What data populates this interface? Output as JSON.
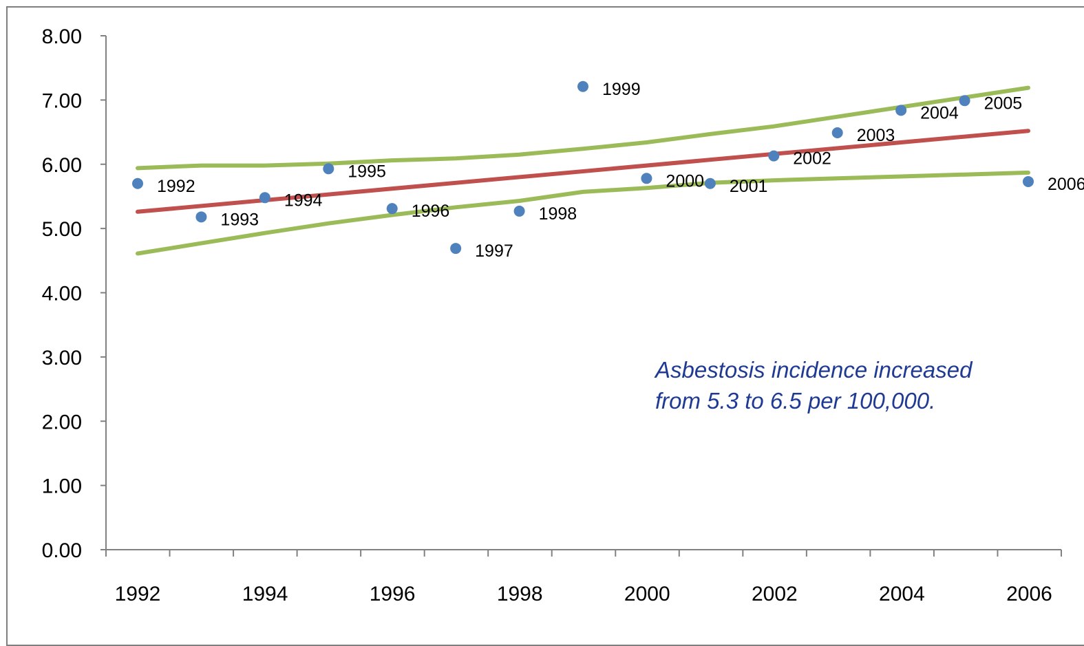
{
  "chart_data": {
    "type": "scatter",
    "title": "",
    "xlabel": "",
    "ylabel": "",
    "xlim": [
      1992,
      2006
    ],
    "ylim": [
      0,
      8
    ],
    "x_ticks": [
      "1992",
      "1994",
      "1996",
      "1998",
      "2000",
      "2002",
      "2004",
      "2006"
    ],
    "y_ticks": [
      "0.00",
      "1.00",
      "2.00",
      "3.00",
      "4.00",
      "5.00",
      "6.00",
      "7.00",
      "8.00"
    ],
    "grid": false,
    "legend": "none",
    "points": [
      {
        "x": 1992,
        "y": 5.7,
        "label": "1992"
      },
      {
        "x": 1993,
        "y": 5.18,
        "label": "1993"
      },
      {
        "x": 1994,
        "y": 5.48,
        "label": "1994"
      },
      {
        "x": 1995,
        "y": 5.93,
        "label": "1995"
      },
      {
        "x": 1996,
        "y": 5.31,
        "label": "1996"
      },
      {
        "x": 1997,
        "y": 4.69,
        "label": "1997"
      },
      {
        "x": 1998,
        "y": 5.27,
        "label": "1998"
      },
      {
        "x": 1999,
        "y": 7.21,
        "label": "1999"
      },
      {
        "x": 2000,
        "y": 5.78,
        "label": "2000"
      },
      {
        "x": 2001,
        "y": 5.7,
        "label": "2001"
      },
      {
        "x": 2002,
        "y": 6.13,
        "label": "2002"
      },
      {
        "x": 2003,
        "y": 6.49,
        "label": "2003"
      },
      {
        "x": 2004,
        "y": 6.84,
        "label": "2004"
      },
      {
        "x": 2005,
        "y": 6.99,
        "label": "2005"
      },
      {
        "x": 2006,
        "y": 5.73,
        "label": "2006"
      }
    ],
    "trend_line": {
      "x": [
        1992,
        2006
      ],
      "y": [
        5.26,
        6.52
      ]
    },
    "upper_band": {
      "x": [
        1992,
        1993,
        1994,
        1995,
        1996,
        1997,
        1998,
        1999,
        2000,
        2001,
        2002,
        2003,
        2004,
        2005,
        2006
      ],
      "y": [
        5.94,
        5.98,
        5.98,
        6.01,
        6.06,
        6.09,
        6.15,
        6.24,
        6.34,
        6.47,
        6.59,
        6.74,
        6.89,
        7.04,
        7.19
      ]
    },
    "lower_band": {
      "x": [
        1992,
        1993,
        1994,
        1995,
        1996,
        1997,
        1998,
        1999,
        2000,
        2001,
        2002,
        2003,
        2004,
        2005,
        2006
      ],
      "y": [
        4.61,
        4.77,
        4.93,
        5.08,
        5.21,
        5.33,
        5.43,
        5.57,
        5.63,
        5.71,
        5.75,
        5.78,
        5.81,
        5.84,
        5.87
      ]
    },
    "annotation": [
      "Asbestosis incidence increased",
      "from 5.3 to 6.5 per 100,000."
    ],
    "colors": {
      "points": "#4f81bd",
      "trend_line": "#c0504d",
      "bands": "#9bbb59",
      "axis": "#808080",
      "annotation": "#1f3a93",
      "frame": "#7f7f7f"
    }
  }
}
